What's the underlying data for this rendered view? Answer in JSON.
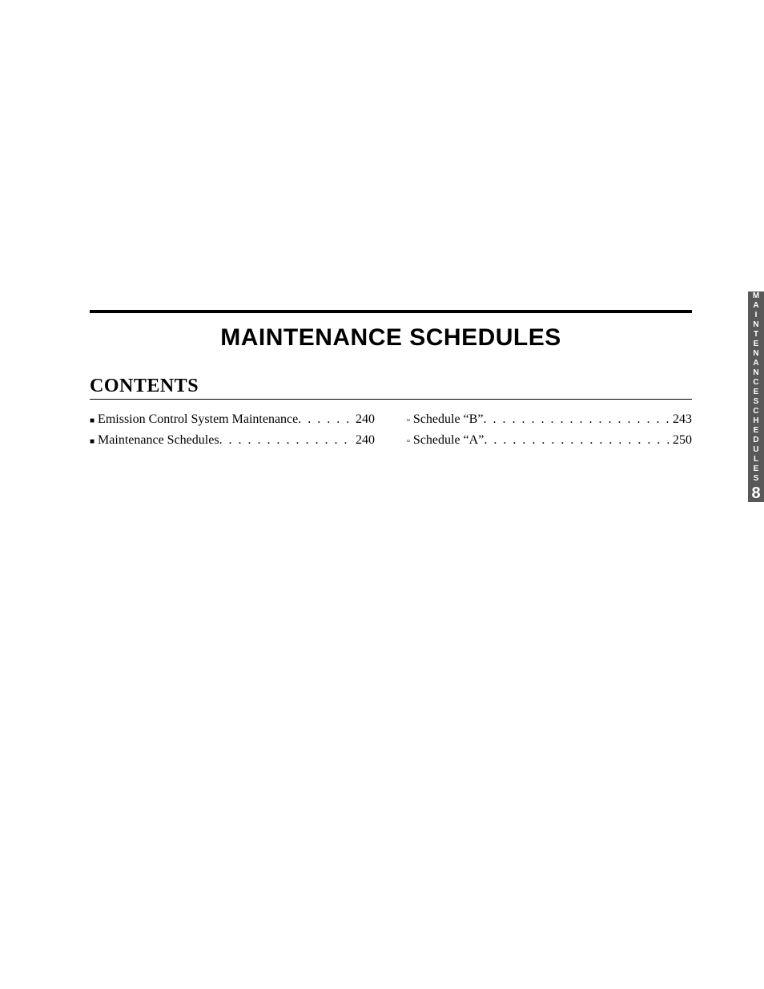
{
  "chapter_title": "MAINTENANCE SCHEDULES",
  "contents_heading": "CONTENTS",
  "toc": {
    "left": [
      {
        "bullet": "■",
        "bullet_class": "sq",
        "label": "Emission Control System Maintenance",
        "page": "240"
      },
      {
        "bullet": "■",
        "bullet_class": "sq",
        "label": "Maintenance Schedules",
        "page": "240"
      }
    ],
    "right": [
      {
        "bullet": "▫",
        "bullet_class": "hollow",
        "label": "Schedule “B”",
        "page": "243"
      },
      {
        "bullet": "▫",
        "bullet_class": "hollow",
        "label": "Schedule “A”",
        "page": "250"
      }
    ]
  },
  "side_tab": {
    "line1": "MAINTENANCE",
    "line2": "SCHEDULES",
    "number": "8"
  },
  "colors": {
    "text": "#000000",
    "tab_bg": "#585858",
    "tab_fg": "#ffffff",
    "page_bg": "#ffffff"
  },
  "fonts": {
    "title_family": "Arial",
    "title_size_pt": 23,
    "body_family": "Palatino",
    "body_size_pt": 12,
    "contents_size_pt": 18,
    "tab_letter_size_pt": 8,
    "tab_number_size_pt": 15
  }
}
